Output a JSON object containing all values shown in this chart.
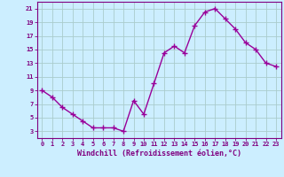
{
  "x": [
    0,
    1,
    2,
    3,
    4,
    5,
    6,
    7,
    8,
    9,
    10,
    11,
    12,
    13,
    14,
    15,
    16,
    17,
    18,
    19,
    20,
    21,
    22,
    23
  ],
  "y": [
    9,
    8,
    6.5,
    5.5,
    4.5,
    3.5,
    3.5,
    3.5,
    3,
    7.5,
    5.5,
    10,
    14.5,
    15.5,
    14.5,
    18.5,
    20.5,
    21,
    19.5,
    18,
    16,
    15,
    13,
    12.5
  ],
  "line_color": "#990099",
  "marker": "+",
  "background_color": "#cceeff",
  "grid_color": "#aacccc",
  "xlabel": "Windchill (Refroidissement éolien,°C)",
  "xlabel_color": "#800080",
  "ytick_labels": [
    "3",
    "5",
    "7",
    "9",
    "11",
    "13",
    "15",
    "17",
    "19",
    "21"
  ],
  "ytick_values": [
    3,
    5,
    7,
    9,
    11,
    13,
    15,
    17,
    19,
    21
  ],
  "xtick_labels": [
    "0",
    "1",
    "2",
    "3",
    "4",
    "5",
    "6",
    "7",
    "8",
    "9",
    "10",
    "11",
    "12",
    "13",
    "14",
    "15",
    "16",
    "17",
    "18",
    "19",
    "20",
    "21",
    "22",
    "23"
  ],
  "ylim": [
    2.0,
    22.0
  ],
  "xlim": [
    -0.5,
    23.5
  ],
  "tick_color": "#800080",
  "axis_color": "#800080",
  "linewidth": 1.0,
  "markersize": 4
}
